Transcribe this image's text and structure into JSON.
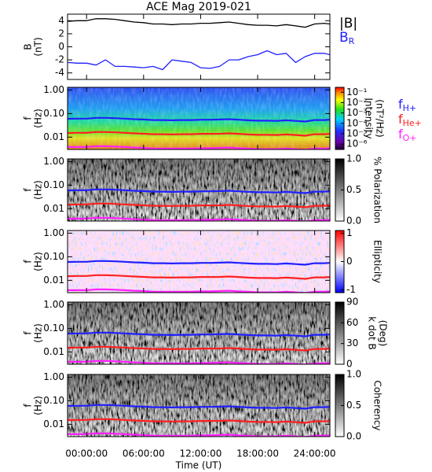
{
  "chart_data": [
    {
      "type": "line",
      "title": "ACE Mag 2019-021",
      "ylabel": [
        "B",
        "(nT)"
      ],
      "ylim": [
        -5,
        5
      ],
      "yticks": [
        -4,
        -2,
        0,
        2,
        4
      ],
      "x": [
        -2,
        -1,
        0,
        1,
        2,
        3,
        4,
        5,
        6,
        7,
        8,
        9,
        10,
        11,
        12,
        13,
        14,
        15,
        16,
        17,
        18,
        19,
        20,
        21,
        22,
        23,
        24,
        25,
        25.6
      ],
      "series": [
        {
          "name": "|B|",
          "color": "#000000",
          "values": [
            3.9,
            4.0,
            4.0,
            4.3,
            4.3,
            4.2,
            4.0,
            3.8,
            3.7,
            3.5,
            3.5,
            3.4,
            3.5,
            3.5,
            3.6,
            3.6,
            3.7,
            3.8,
            3.6,
            3.4,
            3.3,
            3.3,
            3.2,
            3.4,
            3.2,
            3.0,
            3.5,
            3.6,
            3.5
          ]
        },
        {
          "name": "B",
          "sub": "R",
          "color": "#2020ff",
          "values": [
            -2.4,
            -2.5,
            -2.5,
            -2.8,
            -2.0,
            -3.0,
            -3.0,
            -3.1,
            -3.2,
            -3.0,
            -3.5,
            -2.0,
            -2.2,
            -2.4,
            -3.2,
            -3.3,
            -3.0,
            -2.0,
            -2.0,
            -1.5,
            -1.2,
            -0.6,
            -1.2,
            -1.0,
            -2.4,
            -1.5,
            -1.0,
            -1.0,
            -1.2
          ]
        }
      ]
    },
    {
      "type": "spectrogram",
      "ylabel": [
        "f",
        "(Hz)"
      ],
      "ylog": true,
      "ylim": [
        0.003,
        1.3
      ],
      "yticks": [
        {
          "value": 1,
          "label": "1.00"
        },
        {
          "value": 0.1,
          "label": "0.10"
        },
        {
          "value": 0.01,
          "label": "0.01"
        }
      ],
      "colormap": "rainbow",
      "clog": true,
      "clim": [
        3e-07,
        0.3
      ],
      "clabel": [
        "Intensity",
        "(nT²/Hz)"
      ],
      "cticks": [
        {
          "value": 0.1,
          "label": "10⁻¹"
        },
        {
          "value": 0.01,
          "label": "10⁻²"
        },
        {
          "value": 0.001,
          "label": "10⁻³"
        },
        {
          "value": 0.0001,
          "label": "10⁻⁴"
        },
        {
          "value": 1e-05,
          "label": "10⁻⁵"
        },
        {
          "value": 1e-06,
          "label": "10⁻⁶"
        }
      ],
      "series": [
        {
          "name": "f",
          "sub": "H+",
          "color": "#2020ff",
          "values": [
            0.06,
            0.061,
            0.061,
            0.066,
            0.066,
            0.064,
            0.061,
            0.058,
            0.056,
            0.053,
            0.053,
            0.052,
            0.053,
            0.053,
            0.055,
            0.055,
            0.056,
            0.058,
            0.055,
            0.052,
            0.05,
            0.05,
            0.049,
            0.052,
            0.049,
            0.046,
            0.053,
            0.053,
            0.055
          ]
        },
        {
          "name": "f",
          "sub": "He+",
          "color": "#ff2020",
          "values": [
            0.015,
            0.0153,
            0.0153,
            0.0165,
            0.0165,
            0.016,
            0.0153,
            0.0145,
            0.014,
            0.0133,
            0.0133,
            0.013,
            0.0133,
            0.0133,
            0.0138,
            0.0138,
            0.014,
            0.0145,
            0.0138,
            0.013,
            0.0125,
            0.0125,
            0.0123,
            0.013,
            0.0123,
            0.0115,
            0.0133,
            0.0133,
            0.0138
          ]
        },
        {
          "name": "f",
          "sub": "O+",
          "color": "#ff20ff",
          "values": [
            0.0038,
            0.0038,
            0.0038,
            0.0041,
            0.0041,
            0.004,
            0.0038,
            0.0036,
            0.0035,
            0.0033,
            0.0033,
            0.0033,
            0.0033,
            0.0033,
            0.0034,
            0.0034,
            0.0035,
            0.0036,
            0.0034,
            0.0033,
            0.0031,
            0.0031,
            0.0031,
            0.0033,
            0.0031,
            0.0029,
            0.0033,
            0.0033,
            0.0034
          ]
        }
      ]
    },
    {
      "type": "spectrogram",
      "ylabel": [
        "f",
        "(Hz)"
      ],
      "ylog": true,
      "ylim": [
        0.003,
        1.3
      ],
      "yticks": [
        {
          "value": 1,
          "label": "1.00"
        },
        {
          "value": 0.1,
          "label": "0.10"
        },
        {
          "value": 0.01,
          "label": "0.01"
        }
      ],
      "colormap": "gray",
      "clim": [
        0,
        1
      ],
      "clabel": [
        "% Polarization"
      ],
      "cticks": [
        {
          "value": 0,
          "label": "0.0"
        },
        {
          "value": 0.5,
          "label": "0.5"
        },
        {
          "value": 1,
          "label": "1.0"
        }
      ]
    },
    {
      "type": "spectrogram",
      "ylabel": [
        "f",
        "(Hz)"
      ],
      "ylog": true,
      "ylim": [
        0.003,
        1.3
      ],
      "yticks": [
        {
          "value": 1,
          "label": "1.00"
        },
        {
          "value": 0.1,
          "label": "0.10"
        },
        {
          "value": 0.01,
          "label": "0.01"
        }
      ],
      "colormap": "bwr",
      "clim": [
        -1.1,
        1.1
      ],
      "clabel": [
        "Ellipticity"
      ],
      "cticks": [
        -1,
        0,
        1
      ]
    },
    {
      "type": "spectrogram",
      "ylabel": [
        "f",
        "(Hz)"
      ],
      "ylog": true,
      "ylim": [
        0.003,
        1.3
      ],
      "yticks": [
        {
          "value": 1,
          "label": "1.00"
        },
        {
          "value": 0.1,
          "label": "0.10"
        },
        {
          "value": 0.01,
          "label": "0.01"
        }
      ],
      "colormap": "gray",
      "clim": [
        0,
        90
      ],
      "clabel": [
        "k dot B",
        "(Deg)"
      ],
      "cticks": [
        0,
        30,
        60,
        90
      ]
    },
    {
      "type": "spectrogram",
      "ylabel": [
        "f",
        "(Hz)"
      ],
      "ylog": true,
      "ylim": [
        0.003,
        1.3
      ],
      "yticks": [
        {
          "value": 1,
          "label": "1.00"
        },
        {
          "value": 0.1,
          "label": "0.10"
        },
        {
          "value": 0.01,
          "label": "0.01"
        }
      ],
      "colormap": "gray",
      "clim": [
        0,
        1
      ],
      "clabel": [
        "Coherency"
      ],
      "cticks": [
        {
          "value": 0,
          "label": "0.0"
        },
        {
          "value": 0.5,
          "label": "0.5"
        },
        {
          "value": 1,
          "label": "1.0"
        }
      ],
      "xlim": [
        -2,
        25.6
      ],
      "xlabel": "Time (UT)",
      "xticks": [
        {
          "value": 0,
          "label": "00:00:00"
        },
        {
          "value": 6,
          "label": "06:00:00"
        },
        {
          "value": 12,
          "label": "12:00:00"
        },
        {
          "value": 18,
          "label": "18:00:00"
        },
        {
          "value": 24,
          "label": "24:00:00"
        }
      ]
    }
  ]
}
